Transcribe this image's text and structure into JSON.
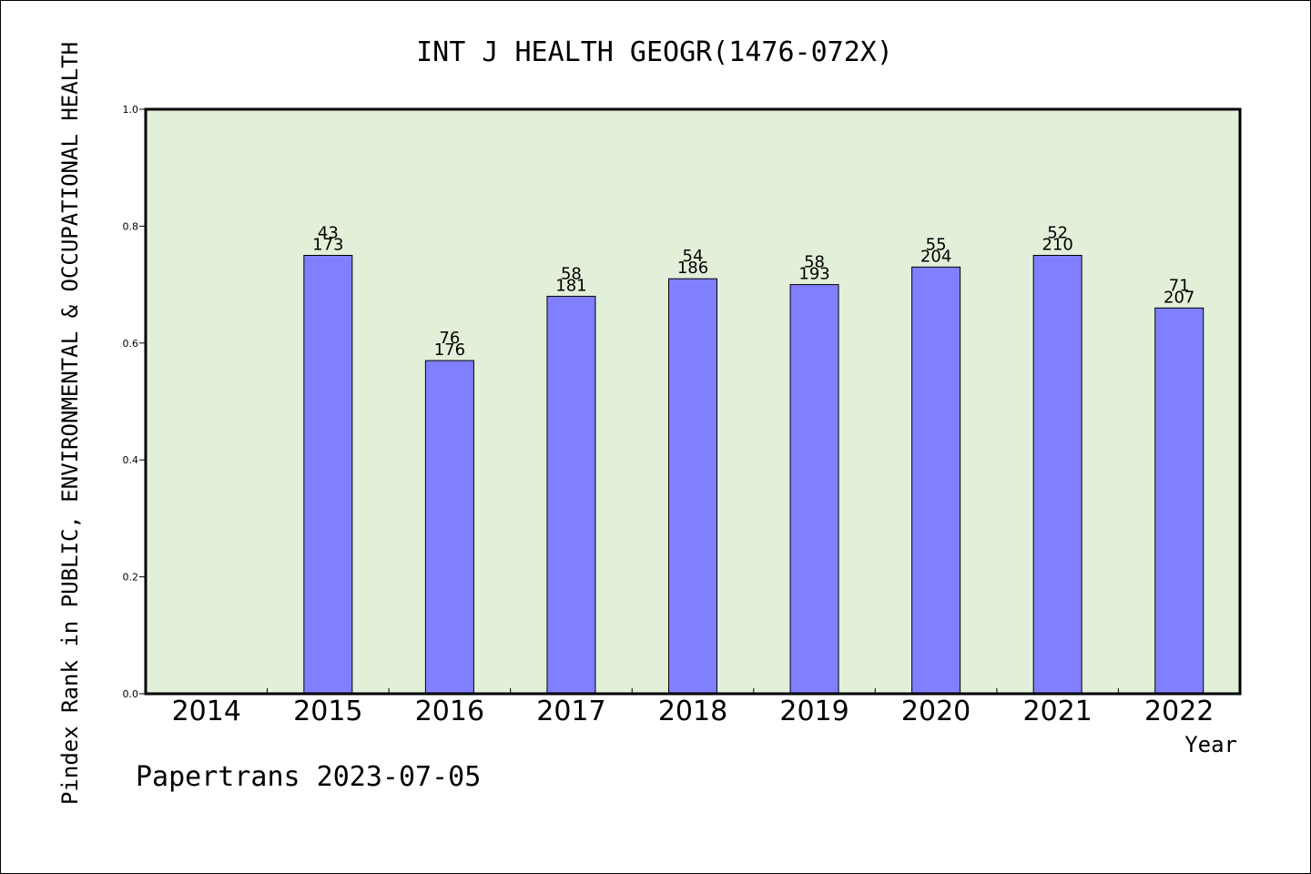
{
  "chart_data": {
    "type": "bar",
    "title": "INT J HEALTH GEOGR(1476-072X)",
    "ylabel": "Pindex Rank in PUBLIC, ENVIRONMENTAL & OCCUPATIONAL HEALTH",
    "xlabel": "Year",
    "ylim": [
      0.0,
      1.0
    ],
    "yticks": [
      "0.0",
      "0.2",
      "0.4",
      "0.6",
      "0.8",
      "1.0"
    ],
    "ytick_values": [
      0.0,
      0.2,
      0.4,
      0.6,
      0.8,
      1.0
    ],
    "categories": [
      "2014",
      "2015",
      "2016",
      "2017",
      "2018",
      "2019",
      "2020",
      "2021",
      "2022"
    ],
    "values": [
      null,
      0.75,
      0.57,
      0.68,
      0.71,
      0.7,
      0.73,
      0.75,
      0.66
    ],
    "rank_labels": [
      "",
      "43",
      "76",
      "58",
      "54",
      "58",
      "55",
      "52",
      "71"
    ],
    "total_labels": [
      "",
      "173",
      "176",
      "181",
      "186",
      "193",
      "204",
      "210",
      "207"
    ],
    "grid": false,
    "colors": {
      "plot_bg": "#e2efd9",
      "bar": "#8080ff",
      "bar_edge": "#000000"
    }
  },
  "footer": {
    "text": "Papertrans 2023-07-05"
  }
}
